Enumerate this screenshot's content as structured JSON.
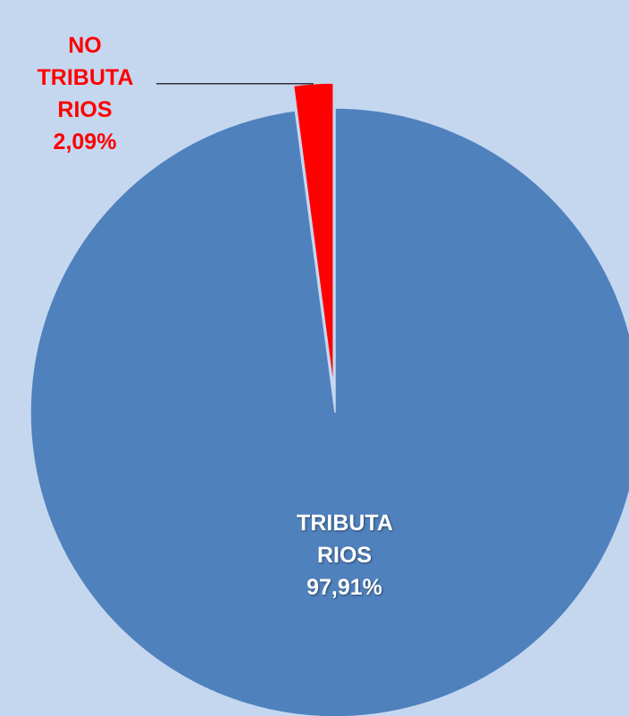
{
  "chart_data": {
    "type": "pie",
    "categories": [
      "TRIBUTA RIOS",
      "NO TRIBUTA RIOS"
    ],
    "values": [
      97.91,
      2.09
    ],
    "value_labels": [
      "97,91%",
      "2,09%"
    ],
    "colors": [
      "#4f81bd",
      "#ff0000"
    ],
    "label_colors": [
      "#ffffff",
      "#ff0000"
    ]
  }
}
